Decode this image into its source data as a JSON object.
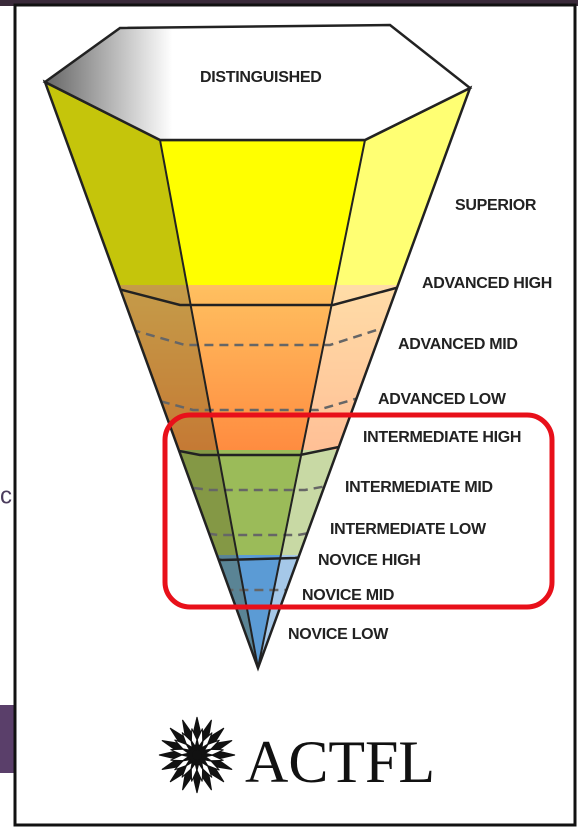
{
  "levels": [
    "DISTINGUISHED",
    "SUPERIOR",
    "ADVANCED HIGH",
    "ADVANCED MID",
    "ADVANCED LOW",
    "INTERMEDIATE HIGH",
    "INTERMEDIATE MID",
    "INTERMEDIATE LOW",
    "NOVICE HIGH",
    "NOVICE MID",
    "NOVICE LOW"
  ],
  "logo": {
    "text": "ACTFL"
  },
  "side_text": "c"
}
